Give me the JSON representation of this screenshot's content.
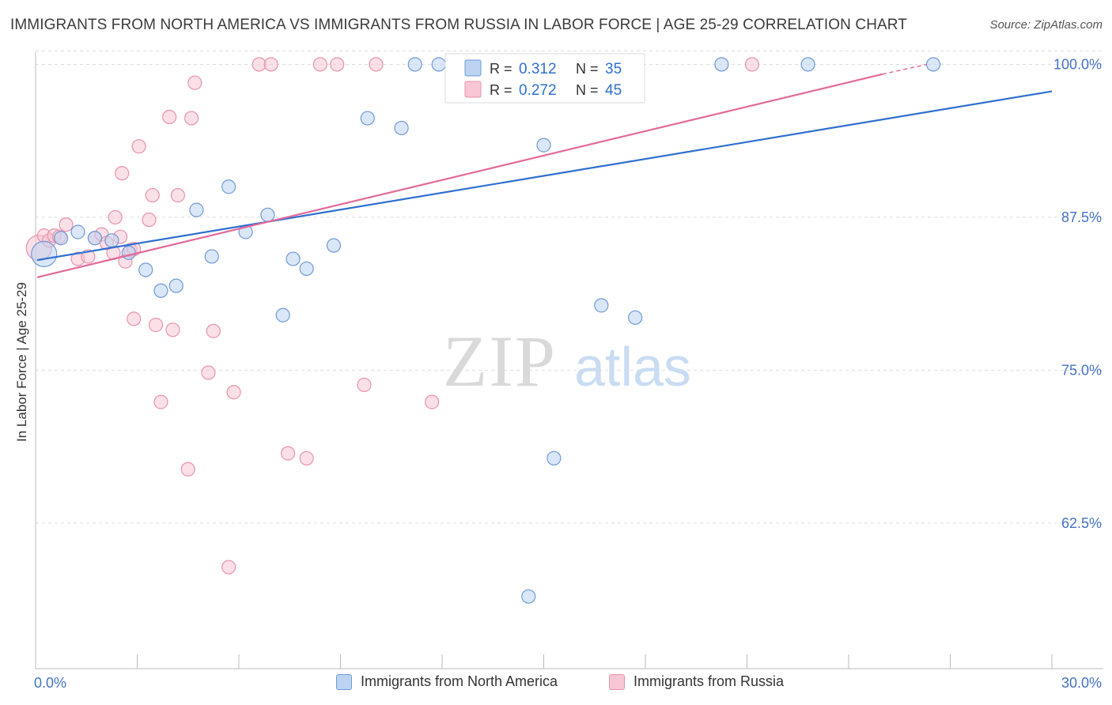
{
  "title": "IMMIGRANTS FROM NORTH AMERICA VS IMMIGRANTS FROM RUSSIA IN LABOR FORCE | AGE 25-29 CORRELATION CHART",
  "source": "Source: ZipAtlas.com",
  "watermark": {
    "zip": "ZIP",
    "atlas": "atlas"
  },
  "colors": {
    "blue_fill": "#bcd3f2",
    "blue_stroke": "#6f9ad8",
    "blue_line": "#2f6fd0",
    "pink_fill": "#f8c6d4",
    "pink_stroke": "#e893ad",
    "pink_line": "#e2699a",
    "tick_label": "#4472c4",
    "grid": "#dddddd"
  },
  "legend_box": {
    "rows": [
      {
        "r_label": "R =",
        "r_value": "0.312",
        "n_label": "N =",
        "n_value": "35"
      },
      {
        "r_label": "R =",
        "r_value": "0.272",
        "n_label": "N =",
        "n_value": "45"
      }
    ]
  },
  "chart_data": {
    "type": "scatter",
    "title": "IMMIGRANTS FROM NORTH AMERICA VS IMMIGRANTS FROM RUSSIA IN LABOR FORCE | AGE 25-29 CORRELATION CHART",
    "xlabel": "",
    "ylabel": "In Labor Force | Age 25-29",
    "xlim": [
      0,
      30
    ],
    "ylim": [
      50.6,
      101
    ],
    "x_tick_labels": [
      "0.0%",
      "30.0%"
    ],
    "y_ticks": [
      62.5,
      75.0,
      87.5,
      100.0
    ],
    "y_tick_labels": [
      "62.5%",
      "75.0%",
      "87.5%",
      "100.0%"
    ],
    "grid": true,
    "legend_placement": "top-center",
    "series": [
      {
        "name": "Immigrants from North America",
        "color": "#6f9ad8",
        "R": 0.312,
        "N": 35,
        "trend": {
          "x0": 0.05,
          "y0": 84.0,
          "x1": 30.0,
          "y1": 97.8
        },
        "points": [
          {
            "x": 0.25,
            "y": 84.5,
            "size": "large"
          },
          {
            "x": 0.75,
            "y": 85.8
          },
          {
            "x": 1.25,
            "y": 86.3
          },
          {
            "x": 1.75,
            "y": 85.8
          },
          {
            "x": 2.25,
            "y": 85.6
          },
          {
            "x": 2.75,
            "y": 84.6
          },
          {
            "x": 3.25,
            "y": 83.2
          },
          {
            "x": 3.7,
            "y": 81.5
          },
          {
            "x": 4.15,
            "y": 81.9
          },
          {
            "x": 4.75,
            "y": 88.1
          },
          {
            "x": 5.2,
            "y": 84.3
          },
          {
            "x": 5.7,
            "y": 90.0
          },
          {
            "x": 6.2,
            "y": 86.3
          },
          {
            "x": 6.85,
            "y": 87.7
          },
          {
            "x": 7.3,
            "y": 79.5
          },
          {
            "x": 7.6,
            "y": 84.1
          },
          {
            "x": 8.0,
            "y": 83.3
          },
          {
            "x": 8.8,
            "y": 85.2
          },
          {
            "x": 9.8,
            "y": 95.6
          },
          {
            "x": 10.8,
            "y": 94.8
          },
          {
            "x": 11.2,
            "y": 100.0
          },
          {
            "x": 11.9,
            "y": 100.0
          },
          {
            "x": 12.55,
            "y": 100.0
          },
          {
            "x": 13.3,
            "y": 100.0
          },
          {
            "x": 14.2,
            "y": 100.0
          },
          {
            "x": 14.55,
            "y": 56.5
          },
          {
            "x": 15.0,
            "y": 93.4
          },
          {
            "x": 15.3,
            "y": 67.8
          },
          {
            "x": 16.3,
            "y": 100.0
          },
          {
            "x": 16.7,
            "y": 80.3
          },
          {
            "x": 17.7,
            "y": 79.3
          },
          {
            "x": 20.25,
            "y": 100.0
          },
          {
            "x": 22.8,
            "y": 100.0
          },
          {
            "x": 26.5,
            "y": 100.0
          },
          {
            "x": 14.7,
            "y": 100.0
          }
        ]
      },
      {
        "name": "Immigrants from Russia",
        "color": "#e893ad",
        "R": 0.272,
        "N": 45,
        "trend": {
          "x0": 0.05,
          "y0": 82.6,
          "x1": 25.0,
          "y1": 99.2,
          "dash_to_x": 26.3,
          "dash_to_y": 100.0
        },
        "points": [
          {
            "x": 0.1,
            "y": 85.0,
            "size": "large"
          },
          {
            "x": 0.25,
            "y": 86.0
          },
          {
            "x": 0.4,
            "y": 85.6
          },
          {
            "x": 0.55,
            "y": 86.0
          },
          {
            "x": 0.7,
            "y": 85.9
          },
          {
            "x": 0.9,
            "y": 86.9
          },
          {
            "x": 1.25,
            "y": 84.1
          },
          {
            "x": 1.55,
            "y": 84.3
          },
          {
            "x": 1.75,
            "y": 85.8
          },
          {
            "x": 1.95,
            "y": 86.1
          },
          {
            "x": 2.1,
            "y": 85.4
          },
          {
            "x": 2.3,
            "y": 84.6
          },
          {
            "x": 2.5,
            "y": 85.9
          },
          {
            "x": 2.65,
            "y": 83.9
          },
          {
            "x": 2.8,
            "y": 84.8
          },
          {
            "x": 2.35,
            "y": 87.5
          },
          {
            "x": 2.55,
            "y": 91.1
          },
          {
            "x": 2.9,
            "y": 84.9
          },
          {
            "x": 2.9,
            "y": 79.2
          },
          {
            "x": 3.05,
            "y": 93.3
          },
          {
            "x": 3.35,
            "y": 87.3
          },
          {
            "x": 3.45,
            "y": 89.3
          },
          {
            "x": 3.55,
            "y": 78.7
          },
          {
            "x": 3.7,
            "y": 72.4
          },
          {
            "x": 3.95,
            "y": 95.7
          },
          {
            "x": 4.05,
            "y": 78.3
          },
          {
            "x": 4.2,
            "y": 89.3
          },
          {
            "x": 4.5,
            "y": 66.9
          },
          {
            "x": 4.6,
            "y": 95.6
          },
          {
            "x": 4.7,
            "y": 98.5
          },
          {
            "x": 5.1,
            "y": 74.8
          },
          {
            "x": 5.25,
            "y": 78.2
          },
          {
            "x": 5.7,
            "y": 58.9
          },
          {
            "x": 5.85,
            "y": 73.2
          },
          {
            "x": 6.6,
            "y": 100.0
          },
          {
            "x": 6.95,
            "y": 100.0
          },
          {
            "x": 7.45,
            "y": 68.2
          },
          {
            "x": 8.0,
            "y": 67.8
          },
          {
            "x": 8.4,
            "y": 100.0
          },
          {
            "x": 8.9,
            "y": 100.0
          },
          {
            "x": 9.7,
            "y": 73.8
          },
          {
            "x": 10.05,
            "y": 100.0
          },
          {
            "x": 11.7,
            "y": 72.4
          },
          {
            "x": 12.35,
            "y": 100.0
          },
          {
            "x": 21.15,
            "y": 100.0
          }
        ]
      }
    ]
  }
}
